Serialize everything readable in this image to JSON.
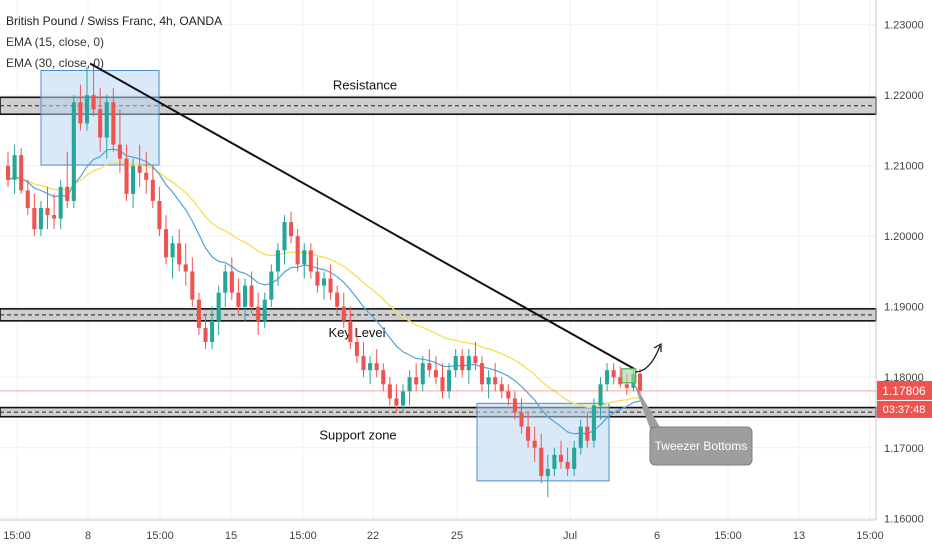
{
  "legend": {
    "title": "British Pound / Swiss Franc, 4h, OANDA",
    "ema_fast": "EMA (15, close, 0)",
    "ema_slow": "EMA (30, close, 0)"
  },
  "colors": {
    "up": "#26a69a",
    "down": "#ef5350",
    "ema_fast": "#4fa3d8",
    "ema_slow": "#f6e05e",
    "trendline": "#111111",
    "zone_fill": "#cfcfcf",
    "box_fill": "#bcd7f2",
    "box_stroke": "#4c8fd4",
    "price_badge": "#ef5350",
    "callout_fill": "#9e9e9e",
    "highlight": "#4caf50"
  },
  "chart_data": {
    "type": "candlestick",
    "symbol": "GBPCHF",
    "timeframe": "4h",
    "ylim": [
      1.1555,
      1.2335
    ],
    "y_ticks": [
      "1.23000",
      "1.22000",
      "1.21000",
      "1.20000",
      "1.19000",
      "1.18000",
      "1.17000",
      "1.16000"
    ],
    "x_ticks": [
      "15:00",
      "8",
      "15:00",
      "15",
      "15:00",
      "22",
      "25",
      "Jul",
      "6",
      "15:00",
      "13",
      "15:00"
    ],
    "last_price": "1.17806",
    "countdown": "03:37:48",
    "zones": [
      {
        "label": "Resistance",
        "low": 1.2173,
        "high": 1.2197
      },
      {
        "label": "Key Level",
        "low": 1.188,
        "high": 1.1897
      },
      {
        "label": "Support zone",
        "low": 1.1744,
        "high": 1.1757
      }
    ],
    "trendline": {
      "from": 1.2245,
      "to": 1.1812
    },
    "boxes": [
      {
        "low": 1.2101,
        "high": 1.2235
      },
      {
        "low": 1.1653,
        "high": 1.1763
      }
    ],
    "annotation": "Tweezer Bottoms",
    "candles": [
      [
        1.21,
        1.212,
        1.207,
        1.208
      ],
      [
        1.208,
        1.213,
        1.206,
        1.2115
      ],
      [
        1.2115,
        1.2125,
        1.206,
        1.2065
      ],
      [
        1.2065,
        1.208,
        1.203,
        1.204
      ],
      [
        1.204,
        1.206,
        1.2,
        1.201
      ],
      [
        1.201,
        1.205,
        1.2,
        1.204
      ],
      [
        1.204,
        1.207,
        1.201,
        1.203
      ],
      [
        1.203,
        1.206,
        1.201,
        1.2025
      ],
      [
        1.2025,
        1.208,
        1.201,
        1.207
      ],
      [
        1.207,
        1.212,
        1.204,
        1.205
      ],
      [
        1.205,
        1.22,
        1.204,
        1.219
      ],
      [
        1.219,
        1.2215,
        1.215,
        1.216
      ],
      [
        1.216,
        1.224,
        1.215,
        1.22
      ],
      [
        1.22,
        1.2245,
        1.217,
        1.218
      ],
      [
        1.218,
        1.221,
        1.212,
        1.214
      ],
      [
        1.214,
        1.22,
        1.211,
        1.219
      ],
      [
        1.219,
        1.221,
        1.212,
        1.213
      ],
      [
        1.213,
        1.218,
        1.209,
        1.211
      ],
      [
        1.211,
        1.213,
        1.205,
        1.206
      ],
      [
        1.206,
        1.211,
        1.204,
        1.21
      ],
      [
        1.21,
        1.213,
        1.207,
        1.209
      ],
      [
        1.209,
        1.212,
        1.206,
        1.208
      ],
      [
        1.208,
        1.21,
        1.204,
        1.205
      ],
      [
        1.205,
        1.207,
        1.2,
        1.201
      ],
      [
        1.201,
        1.203,
        1.196,
        1.197
      ],
      [
        1.197,
        1.2,
        1.194,
        1.199
      ],
      [
        1.199,
        1.201,
        1.195,
        1.196
      ],
      [
        1.196,
        1.199,
        1.193,
        1.195
      ],
      [
        1.195,
        1.197,
        1.19,
        1.191
      ],
      [
        1.191,
        1.192,
        1.186,
        1.187
      ],
      [
        1.187,
        1.189,
        1.184,
        1.185
      ],
      [
        1.185,
        1.19,
        1.184,
        1.188
      ],
      [
        1.188,
        1.193,
        1.186,
        1.192
      ],
      [
        1.192,
        1.196,
        1.19,
        1.195
      ],
      [
        1.195,
        1.197,
        1.191,
        1.192
      ],
      [
        1.192,
        1.194,
        1.189,
        1.19
      ],
      [
        1.19,
        1.194,
        1.188,
        1.193
      ],
      [
        1.193,
        1.195,
        1.189,
        1.19
      ],
      [
        1.19,
        1.192,
        1.186,
        1.188
      ],
      [
        1.188,
        1.192,
        1.187,
        1.191
      ],
      [
        1.191,
        1.196,
        1.19,
        1.195
      ],
      [
        1.195,
        1.199,
        1.193,
        1.198
      ],
      [
        1.198,
        1.203,
        1.196,
        1.202
      ],
      [
        1.202,
        1.2035,
        1.199,
        1.2
      ],
      [
        1.2,
        1.201,
        1.195,
        1.196
      ],
      [
        1.196,
        1.199,
        1.194,
        1.198
      ],
      [
        1.198,
        1.199,
        1.194,
        1.195
      ],
      [
        1.195,
        1.197,
        1.192,
        1.193
      ],
      [
        1.193,
        1.195,
        1.191,
        1.194
      ],
      [
        1.194,
        1.196,
        1.191,
        1.192
      ],
      [
        1.192,
        1.193,
        1.189,
        1.19
      ],
      [
        1.19,
        1.192,
        1.187,
        1.188
      ],
      [
        1.188,
        1.19,
        1.184,
        1.185
      ],
      [
        1.185,
        1.187,
        1.182,
        1.183
      ],
      [
        1.183,
        1.185,
        1.18,
        1.181
      ],
      [
        1.181,
        1.183,
        1.179,
        1.182
      ],
      [
        1.182,
        1.184,
        1.18,
        1.181
      ],
      [
        1.181,
        1.182,
        1.178,
        1.179
      ],
      [
        1.179,
        1.18,
        1.176,
        1.177
      ],
      [
        1.177,
        1.179,
        1.175,
        1.176
      ],
      [
        1.176,
        1.179,
        1.175,
        1.178
      ],
      [
        1.178,
        1.181,
        1.176,
        1.18
      ],
      [
        1.18,
        1.182,
        1.178,
        1.179
      ],
      [
        1.179,
        1.183,
        1.178,
        1.182
      ],
      [
        1.182,
        1.184,
        1.18,
        1.181
      ],
      [
        1.181,
        1.183,
        1.179,
        1.18
      ],
      [
        1.18,
        1.182,
        1.177,
        1.178
      ],
      [
        1.178,
        1.182,
        1.177,
        1.181
      ],
      [
        1.181,
        1.184,
        1.18,
        1.183
      ],
      [
        1.183,
        1.184,
        1.18,
        1.181
      ],
      [
        1.181,
        1.184,
        1.179,
        1.183
      ],
      [
        1.183,
        1.185,
        1.181,
        1.182
      ],
      [
        1.182,
        1.183,
        1.178,
        1.179
      ],
      [
        1.179,
        1.181,
        1.177,
        1.18
      ],
      [
        1.18,
        1.182,
        1.178,
        1.179
      ],
      [
        1.179,
        1.18,
        1.177,
        1.178
      ],
      [
        1.178,
        1.179,
        1.176,
        1.177
      ],
      [
        1.177,
        1.178,
        1.174,
        1.175
      ],
      [
        1.175,
        1.177,
        1.172,
        1.173
      ],
      [
        1.173,
        1.175,
        1.17,
        1.171
      ],
      [
        1.171,
        1.173,
        1.168,
        1.17
      ],
      [
        1.17,
        1.172,
        1.165,
        1.166
      ],
      [
        1.166,
        1.169,
        1.163,
        1.167
      ],
      [
        1.167,
        1.17,
        1.166,
        1.169
      ],
      [
        1.169,
        1.171,
        1.167,
        1.168
      ],
      [
        1.168,
        1.17,
        1.166,
        1.167
      ],
      [
        1.167,
        1.171,
        1.166,
        1.17
      ],
      [
        1.17,
        1.174,
        1.169,
        1.173
      ],
      [
        1.173,
        1.175,
        1.17,
        1.171
      ],
      [
        1.171,
        1.177,
        1.17,
        1.176
      ],
      [
        1.176,
        1.18,
        1.174,
        1.179
      ],
      [
        1.179,
        1.182,
        1.178,
        1.181
      ],
      [
        1.181,
        1.182,
        1.179,
        1.18
      ],
      [
        1.18,
        1.1815,
        1.1785,
        1.179
      ],
      [
        1.179,
        1.1805,
        1.1775,
        1.1785
      ],
      [
        1.1785,
        1.181,
        1.178,
        1.1805
      ],
      [
        1.1805,
        1.1812,
        1.1775,
        1.1781
      ]
    ]
  }
}
